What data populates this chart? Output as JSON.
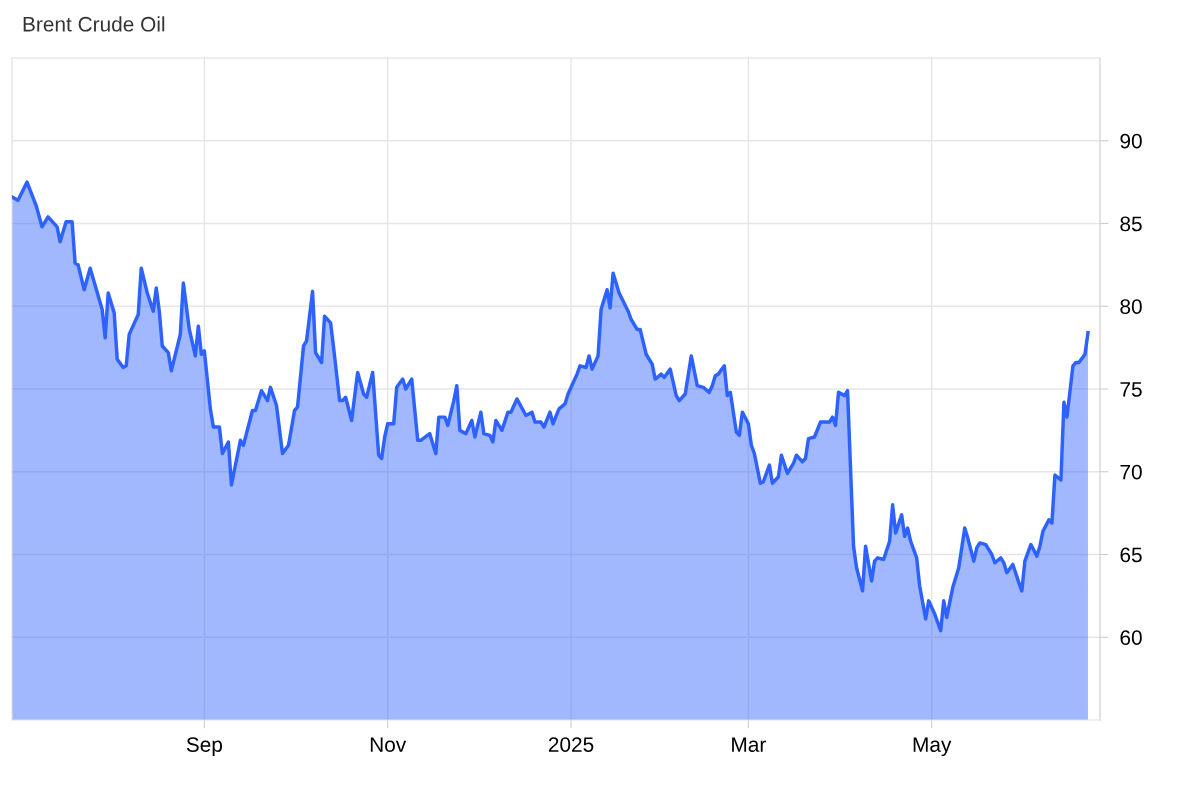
{
  "chart_data": {
    "type": "area",
    "title": "Brent Crude Oil",
    "x": [
      "2024-06-29",
      "2024-07-01",
      "2024-07-04",
      "2024-07-07",
      "2024-07-09",
      "2024-07-11",
      "2024-07-14",
      "2024-07-15",
      "2024-07-17",
      "2024-07-19",
      "2024-07-20",
      "2024-07-21",
      "2024-07-23",
      "2024-07-25",
      "2024-07-29",
      "2024-07-30",
      "2024-07-31",
      "2024-08-02",
      "2024-08-03",
      "2024-08-05",
      "2024-08-06",
      "2024-08-07",
      "2024-08-10",
      "2024-08-11",
      "2024-08-13",
      "2024-08-15",
      "2024-08-16",
      "2024-08-17",
      "2024-08-18",
      "2024-08-20",
      "2024-08-21",
      "2024-08-24",
      "2024-08-25",
      "2024-08-27",
      "2024-08-29",
      "2024-08-30",
      "2024-08-31",
      "2024-09-01",
      "2024-09-03",
      "2024-09-04",
      "2024-09-06",
      "2024-09-07",
      "2024-09-09",
      "2024-09-10",
      "2024-09-13",
      "2024-09-14",
      "2024-09-17",
      "2024-09-18",
      "2024-09-20",
      "2024-09-22",
      "2024-09-23",
      "2024-09-25",
      "2024-09-27",
      "2024-09-29",
      "2024-10-01",
      "2024-10-02",
      "2024-10-04",
      "2024-10-05",
      "2024-10-07",
      "2024-10-08",
      "2024-10-10",
      "2024-10-11",
      "2024-10-13",
      "2024-10-14",
      "2024-10-16",
      "2024-10-17",
      "2024-10-18",
      "2024-10-20",
      "2024-10-22",
      "2024-10-24",
      "2024-10-25",
      "2024-10-27",
      "2024-10-29",
      "2024-10-30",
      "2024-10-31",
      "2024-11-01",
      "2024-11-03",
      "2024-11-04",
      "2024-11-06",
      "2024-11-07",
      "2024-11-09",
      "2024-11-11",
      "2024-11-12",
      "2024-11-15",
      "2024-11-17",
      "2024-11-18",
      "2024-11-20",
      "2024-11-21",
      "2024-11-23",
      "2024-11-24",
      "2024-11-25",
      "2024-11-27",
      "2024-11-29",
      "2024-11-30",
      "2024-12-02",
      "2024-12-03",
      "2024-12-05",
      "2024-12-06",
      "2024-12-07",
      "2024-12-09",
      "2024-12-11",
      "2024-12-12",
      "2024-12-14",
      "2024-12-17",
      "2024-12-19",
      "2024-12-20",
      "2024-12-22",
      "2024-12-23",
      "2024-12-25",
      "2024-12-26",
      "2024-12-28",
      "2024-12-30",
      "2024-12-31",
      "2025-01-03",
      "2025-01-04",
      "2025-01-06",
      "2025-01-07",
      "2025-01-08",
      "2025-01-10",
      "2025-01-11",
      "2025-01-13",
      "2025-01-14",
      "2025-01-15",
      "2025-01-17",
      "2025-01-20",
      "2025-01-21",
      "2025-01-23",
      "2025-01-24",
      "2025-01-26",
      "2025-01-28",
      "2025-01-29",
      "2025-01-31",
      "2025-02-01",
      "2025-02-03",
      "2025-02-05",
      "2025-02-06",
      "2025-02-08",
      "2025-02-10",
      "2025-02-12",
      "2025-02-14",
      "2025-02-16",
      "2025-02-17",
      "2025-02-18",
      "2025-02-19",
      "2025-02-21",
      "2025-02-22",
      "2025-02-23",
      "2025-02-25",
      "2025-02-26",
      "2025-02-27",
      "2025-03-01",
      "2025-03-02",
      "2025-03-03",
      "2025-03-05",
      "2025-03-06",
      "2025-03-08",
      "2025-03-09",
      "2025-03-11",
      "2025-03-12",
      "2025-03-14",
      "2025-03-16",
      "2025-03-17",
      "2025-03-19",
      "2025-03-20",
      "2025-03-21",
      "2025-03-23",
      "2025-03-25",
      "2025-03-28",
      "2025-03-29",
      "2025-03-30",
      "2025-03-31",
      "2025-04-02",
      "2025-04-03",
      "2025-04-05",
      "2025-04-06",
      "2025-04-08",
      "2025-04-09",
      "2025-04-11",
      "2025-04-12",
      "2025-04-13",
      "2025-04-15",
      "2025-04-17",
      "2025-04-18",
      "2025-04-19",
      "2025-04-21",
      "2025-04-22",
      "2025-04-23",
      "2025-04-24",
      "2025-04-26",
      "2025-04-27",
      "2025-04-29",
      "2025-04-30",
      "2025-05-02",
      "2025-05-04",
      "2025-05-05",
      "2025-05-06",
      "2025-05-08",
      "2025-05-10",
      "2025-05-12",
      "2025-05-13",
      "2025-05-15",
      "2025-05-16",
      "2025-05-17",
      "2025-05-19",
      "2025-05-21",
      "2025-05-22",
      "2025-05-24",
      "2025-05-25",
      "2025-05-26",
      "2025-05-28",
      "2025-05-30",
      "2025-05-31",
      "2025-06-01",
      "2025-06-03",
      "2025-06-05",
      "2025-06-06",
      "2025-06-07",
      "2025-06-09",
      "2025-06-10",
      "2025-06-11",
      "2025-06-13",
      "2025-06-14",
      "2025-06-15",
      "2025-06-17",
      "2025-06-18",
      "2025-06-19",
      "2025-06-21",
      "2025-06-22"
    ],
    "series": [
      {
        "color": "#2e62ff",
        "values": [
          86.6,
          86.4,
          87.5,
          86.1,
          84.8,
          85.4,
          84.8,
          83.9,
          85.1,
          85.1,
          82.6,
          82.5,
          81.0,
          82.3,
          79.8,
          78.1,
          80.8,
          79.6,
          76.8,
          76.3,
          76.4,
          78.3,
          79.5,
          82.3,
          80.8,
          79.7,
          81.1,
          79.7,
          77.6,
          77.2,
          76.1,
          78.3,
          81.4,
          78.6,
          77.0,
          78.8,
          77.1,
          77.3,
          73.8,
          72.7,
          72.7,
          71.1,
          71.8,
          69.2,
          71.9,
          71.6,
          73.7,
          73.7,
          74.9,
          74.3,
          75.1,
          74.0,
          71.1,
          71.6,
          73.7,
          73.9,
          77.6,
          77.9,
          80.9,
          77.2,
          76.6,
          79.4,
          79.0,
          77.5,
          74.3,
          74.3,
          74.5,
          73.1,
          76.0,
          74.7,
          74.5,
          76.0,
          71.0,
          70.8,
          72.1,
          72.9,
          72.9,
          75.1,
          75.6,
          75.0,
          75.6,
          71.9,
          71.9,
          72.3,
          71.1,
          73.3,
          73.3,
          72.8,
          74.3,
          75.2,
          72.5,
          72.3,
          73.1,
          72.1,
          73.6,
          72.3,
          72.2,
          71.8,
          73.1,
          72.5,
          73.6,
          73.6,
          74.4,
          73.4,
          73.6,
          73.0,
          73.0,
          72.7,
          73.6,
          72.9,
          73.8,
          74.1,
          74.7,
          75.9,
          76.4,
          76.3,
          77.0,
          76.2,
          77.0,
          79.8,
          81.0,
          79.9,
          82.0,
          80.8,
          79.7,
          79.2,
          78.6,
          78.6,
          77.1,
          76.5,
          75.6,
          75.9,
          75.7,
          76.2,
          74.6,
          74.3,
          74.7,
          77.0,
          75.2,
          75.1,
          74.8,
          75.2,
          75.8,
          75.9,
          76.4,
          74.6,
          74.8,
          72.4,
          72.2,
          73.6,
          72.9,
          71.6,
          71.1,
          69.3,
          69.4,
          70.4,
          69.3,
          69.7,
          71.0,
          69.9,
          70.5,
          71.0,
          70.6,
          70.8,
          72.0,
          72.1,
          73.0,
          73.0,
          73.3,
          72.8,
          74.8,
          74.6,
          74.9,
          65.5,
          64.2,
          62.8,
          65.5,
          63.4,
          64.6,
          64.8,
          64.7,
          65.8,
          68.0,
          66.3,
          67.4,
          66.1,
          66.6,
          65.8,
          64.8,
          63.1,
          61.1,
          62.2,
          61.4,
          60.4,
          62.2,
          61.2,
          63.0,
          64.2,
          66.6,
          66.0,
          64.6,
          65.4,
          65.7,
          65.6,
          65.0,
          64.5,
          64.8,
          64.5,
          63.9,
          64.4,
          63.3,
          62.8,
          64.6,
          65.6,
          64.9,
          65.5,
          66.4,
          67.1,
          66.9,
          69.8,
          69.5,
          74.2,
          73.3,
          76.4,
          76.6,
          76.6,
          77.1,
          78.4
        ]
      }
    ],
    "xlim": [
      "2024-06-29",
      "2025-06-26"
    ],
    "xticks": [
      {
        "value": "2024-09-01",
        "label": "Sep"
      },
      {
        "value": "2024-11-01",
        "label": "Nov"
      },
      {
        "value": "2025-01-01",
        "label": "2025"
      },
      {
        "value": "2025-03-01",
        "label": "Mar"
      },
      {
        "value": "2025-05-01",
        "label": "May"
      }
    ],
    "ylim": [
      55,
      95
    ],
    "yticks": [
      60,
      65,
      70,
      75,
      80,
      85,
      90
    ],
    "grid": true
  }
}
